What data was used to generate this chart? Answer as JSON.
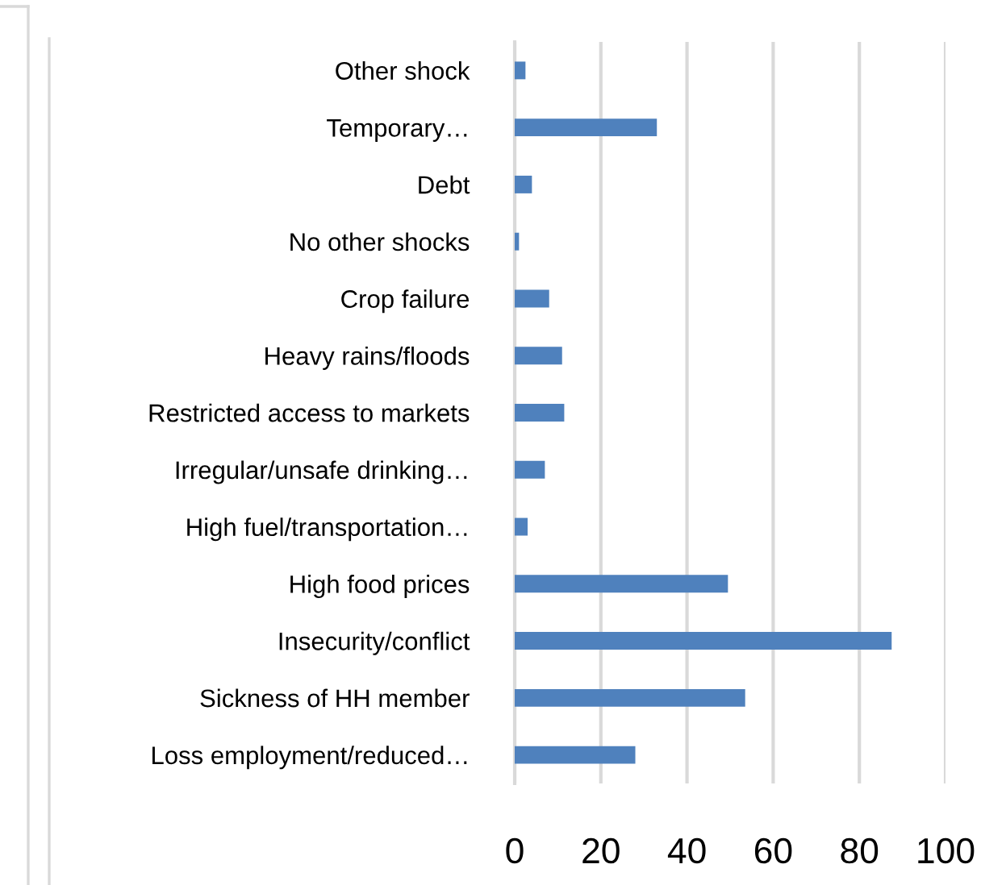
{
  "chart_data": {
    "type": "bar",
    "orientation": "horizontal",
    "categories": [
      "Other shock",
      "Temporary…",
      "Debt",
      "No other shocks",
      "Crop failure",
      "Heavy rains/floods",
      "Restricted access to markets",
      "Irregular/unsafe drinking…",
      "High fuel/transportation…",
      "High food prices",
      "Insecurity/conflict",
      "Sickness of HH member",
      "Loss employment/reduced…"
    ],
    "values": [
      2.5,
      33,
      4,
      1,
      8,
      11,
      11.5,
      7,
      3,
      49.5,
      87.5,
      53.5,
      28
    ],
    "color": "#4f81bd",
    "xlim": [
      0,
      100
    ],
    "xticks": [
      0,
      20,
      40,
      60,
      80,
      100
    ],
    "grid": "x"
  }
}
